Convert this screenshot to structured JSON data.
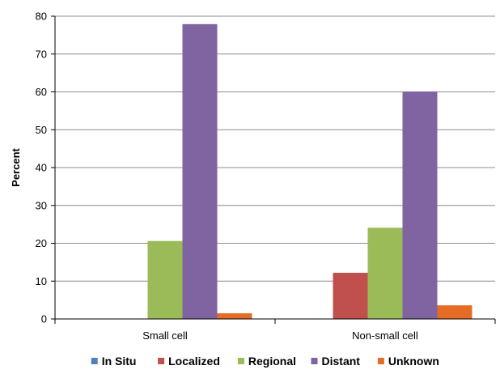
{
  "chart_data": {
    "type": "bar",
    "title": "",
    "xlabel": "",
    "ylabel": "Percent",
    "categories": [
      "Small cell",
      "Non-small cell"
    ],
    "series": [
      {
        "name": "In Situ",
        "color": "#4f81bd",
        "values": [
          0,
          0
        ]
      },
      {
        "name": "Localized",
        "color": "#c0504d",
        "values": [
          0,
          12.2
        ]
      },
      {
        "name": "Regional",
        "color": "#9bbb59",
        "values": [
          20.6,
          24.1
        ]
      },
      {
        "name": "Distant",
        "color": "#8064a2",
        "values": [
          77.9,
          60.1
        ]
      },
      {
        "name": "Unknown",
        "color": "#e46c25",
        "values": [
          1.5,
          3.6
        ]
      }
    ],
    "ylim": [
      0,
      80
    ],
    "yticks": [
      "0",
      "10",
      "20",
      "30",
      "40",
      "50",
      "60",
      "70",
      "80"
    ],
    "grid": true,
    "legend_position": "bottom"
  }
}
